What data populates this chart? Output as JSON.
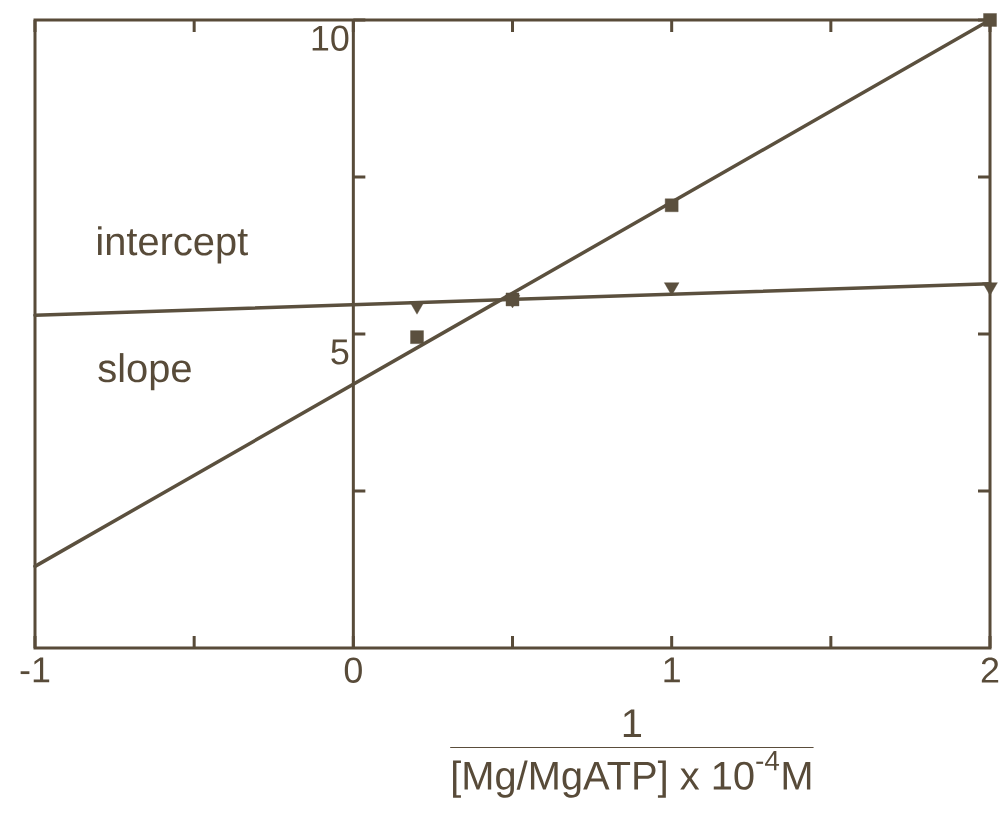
{
  "chart_data": {
    "type": "scatter",
    "xlabel": "\\frac{\\text{1}}{\\text{[Mg/MgATP] x 10}^{\\text{-4}}\\text{M}}",
    "xlim": [
      -1,
      2
    ],
    "xticks": [
      -1,
      {
        "value": -0.5,
        "label": null
      },
      0,
      {
        "value": 0.5,
        "label": null
      },
      1,
      {
        "value": 1.5,
        "label": null
      },
      2
    ],
    "ylim": [
      0,
      10
    ],
    "yticks": [
      {
        "value": 2.5,
        "label": null
      },
      5,
      {
        "value": 7.5,
        "label": null
      },
      10
    ],
    "annotations": [
      "intercept",
      "slope"
    ],
    "series": [
      {
        "type": "scatter",
        "marker": "square",
        "color": "#5b503e",
        "x": [
          0.2,
          0.5,
          1,
          2
        ],
        "values": [
          4.95,
          5.55,
          7.05,
          10
        ]
      },
      {
        "type": "scatter",
        "marker": "triangle",
        "color": "#5b503e",
        "x": [
          0.2,
          0.5,
          1,
          2
        ],
        "values": [
          5.45,
          5.55,
          5.75,
          5.75
        ]
      },
      {
        "type": "line",
        "color": "#5b503e",
        "x": [
          -1,
          2
        ],
        "values": [
          1.3,
          10
        ]
      },
      {
        "type": "line",
        "color": "#5b503e",
        "x": [
          -1,
          2
        ],
        "values": [
          5.3,
          5.8
        ]
      }
    ]
  }
}
